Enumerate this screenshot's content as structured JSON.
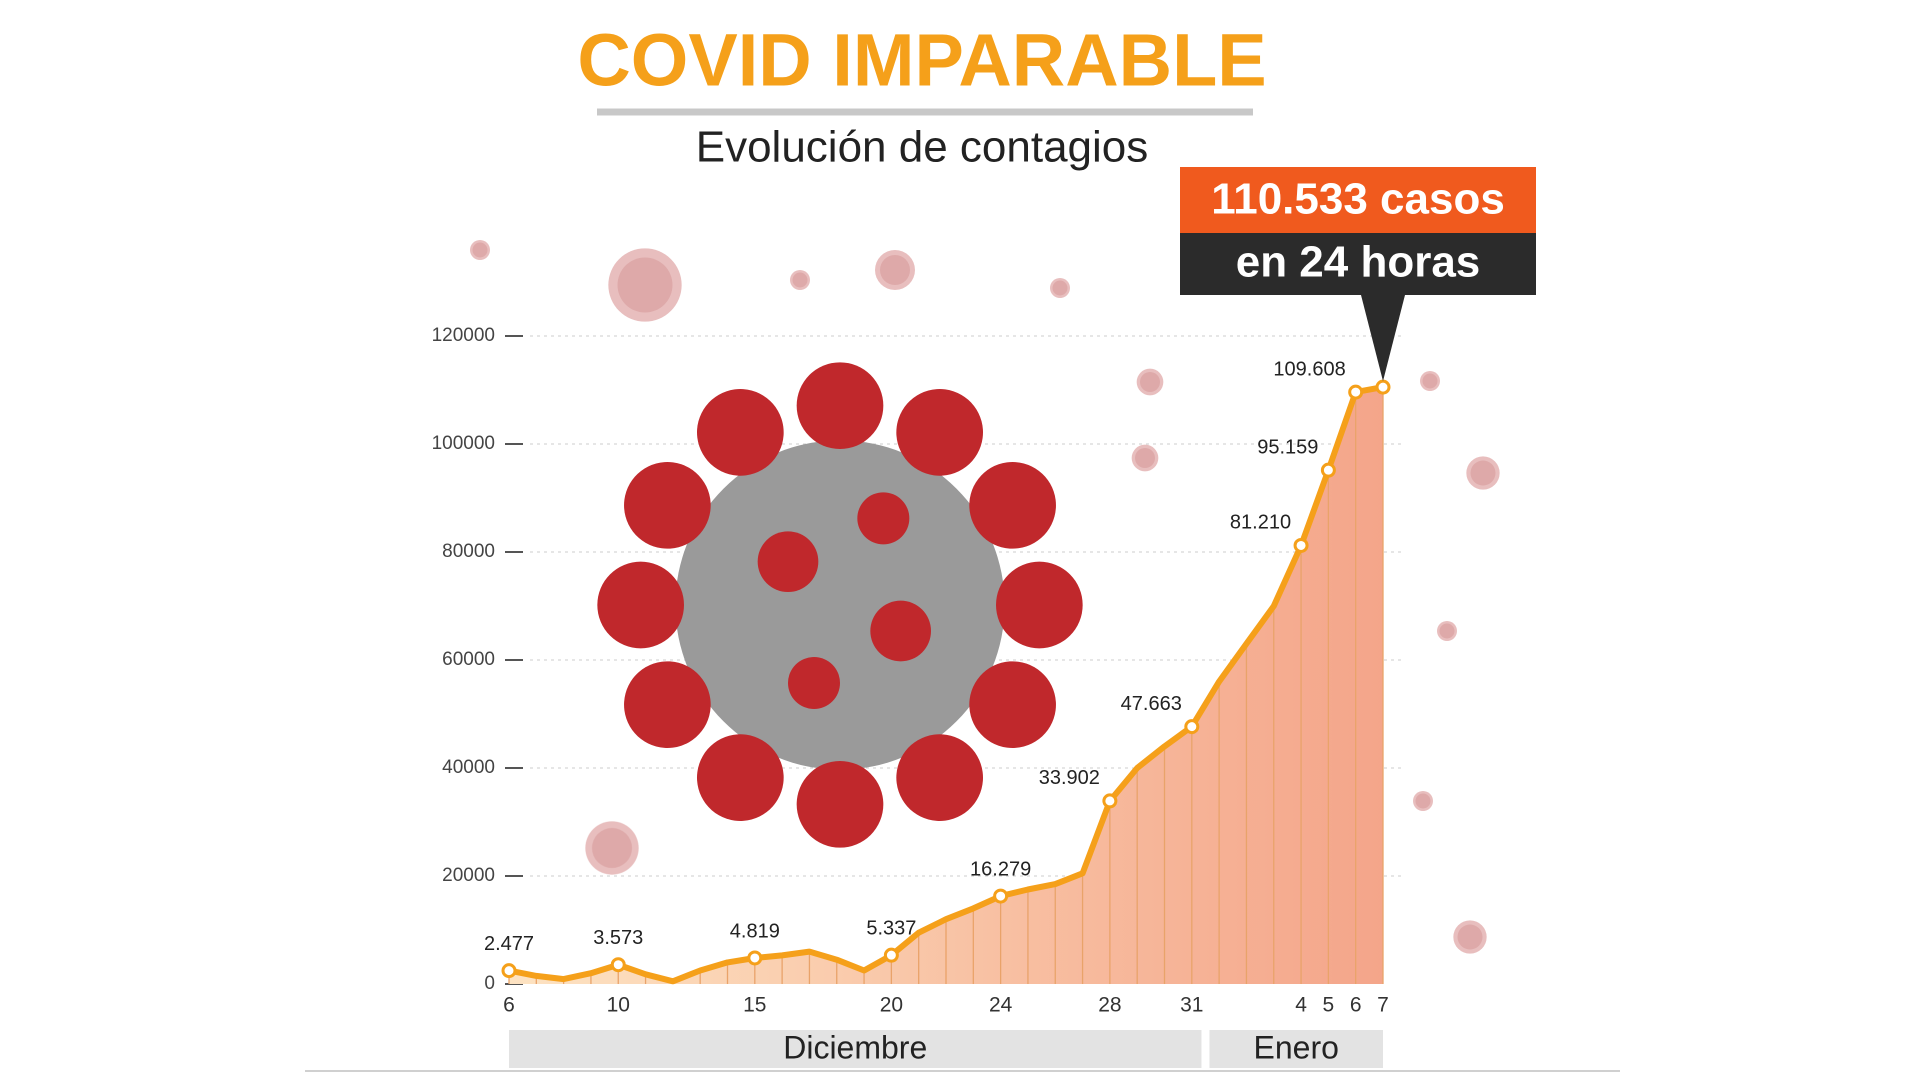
{
  "chart_data": {
    "type": "line",
    "title": "COVID IMPARABLE",
    "subtitle": "Evolución de contagios",
    "categories": [
      "6",
      null,
      null,
      null,
      "10",
      null,
      null,
      null,
      null,
      "15",
      null,
      null,
      null,
      null,
      "20",
      null,
      null,
      null,
      "24",
      null,
      null,
      null,
      "28",
      null,
      null,
      "31",
      null,
      null,
      null,
      "4",
      "5",
      "6",
      "7"
    ],
    "groups": [
      {
        "label": "Diciembre",
        "span": 26
      },
      {
        "label": "Enero",
        "span": 7
      }
    ],
    "values": [
      2477,
      1500,
      900,
      2000,
      3573,
      1800,
      500,
      2500,
      4000,
      4819,
      5300,
      6000,
      4500,
      2500,
      5337,
      9500,
      12000,
      14000,
      16279,
      17500,
      18500,
      20500,
      33902,
      40000,
      44000,
      47663,
      56000,
      63000,
      70000,
      81210,
      95159,
      109608,
      110533
    ],
    "value_labels": [
      "2.477",
      null,
      null,
      null,
      "3.573",
      null,
      null,
      null,
      null,
      "4.819",
      null,
      null,
      null,
      null,
      "5.337",
      null,
      null,
      null,
      "16.279",
      null,
      null,
      null,
      "33.902",
      null,
      null,
      "47.663",
      null,
      null,
      null,
      "81.210",
      "95.159",
      "109.608",
      "110.533 casos"
    ],
    "annotation": "en 24 horas",
    "color": "#f5a01a",
    "ylim": [
      0,
      120000
    ],
    "yticks": [
      0,
      20000,
      40000,
      60000,
      80000,
      100000,
      120000
    ],
    "grid": true
  }
}
